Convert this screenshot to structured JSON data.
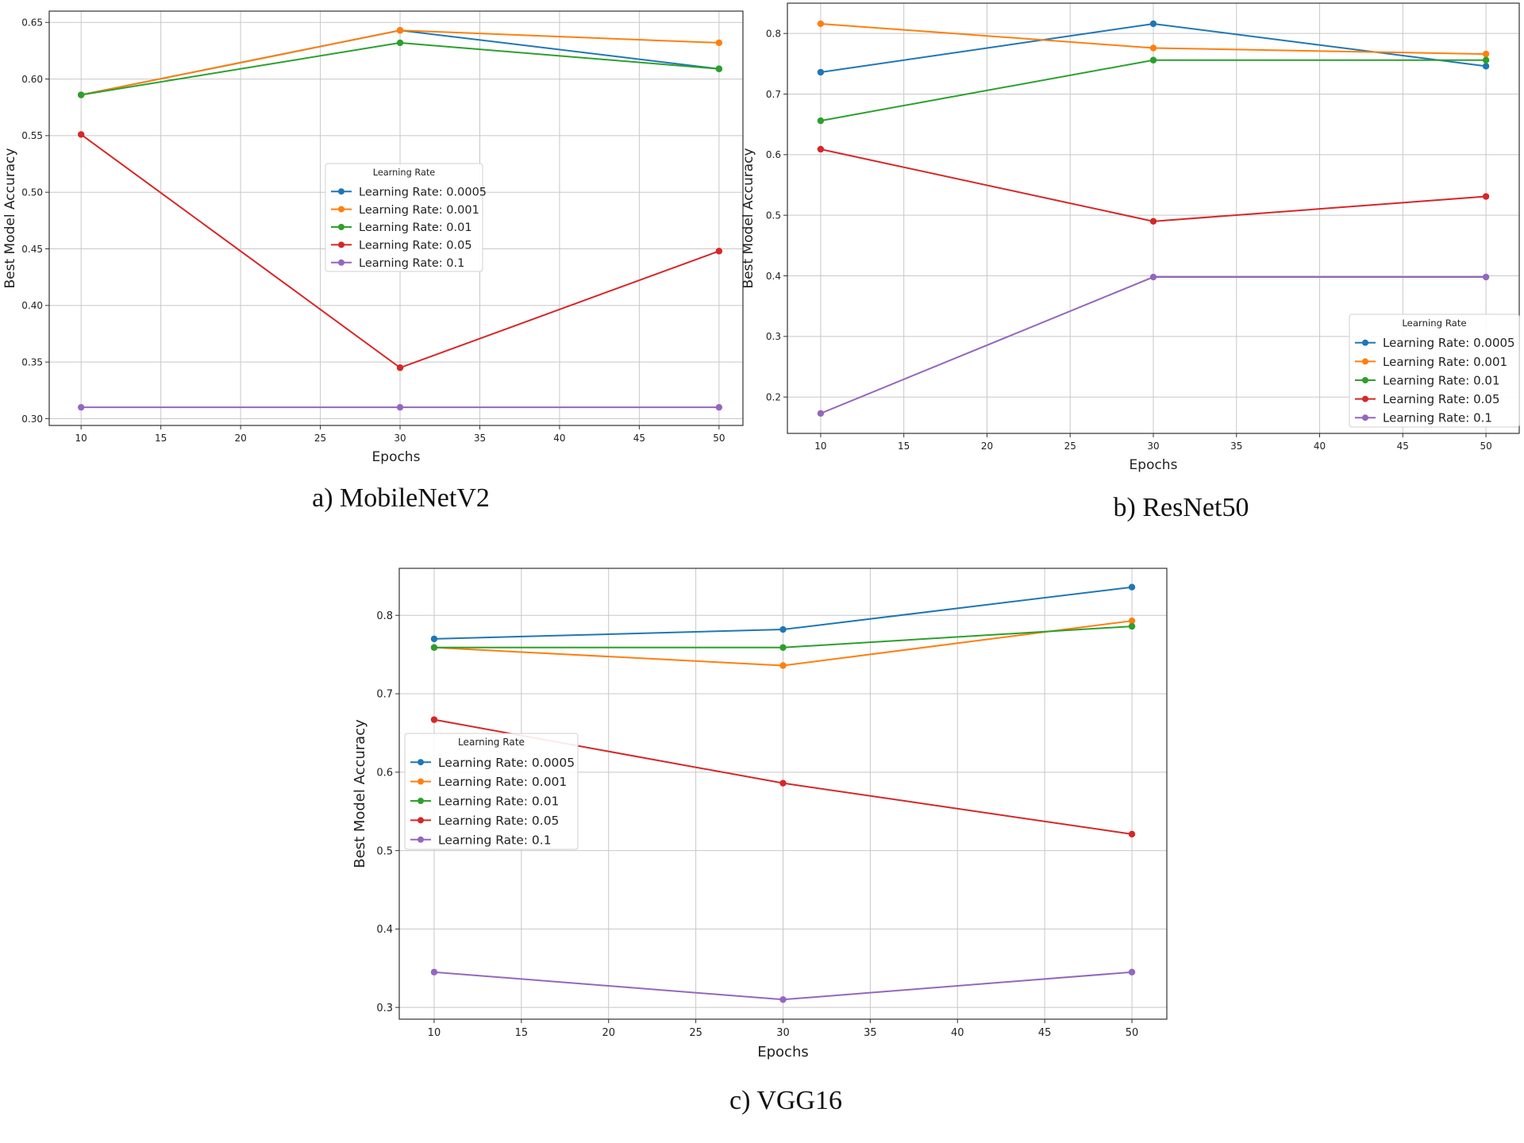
{
  "chart_data": [
    {
      "type": "line",
      "caption": "a)   MobileNetV2",
      "xlabel": "Epochs",
      "ylabel": "Best Model Accuracy",
      "xlim": [
        8,
        51.5
      ],
      "ylim": [
        0.294,
        0.66
      ],
      "x_ticks": [
        10,
        15,
        20,
        25,
        30,
        35,
        40,
        45,
        50
      ],
      "y_ticks": [
        0.3,
        0.35,
        0.4,
        0.45,
        0.5,
        0.55,
        0.6,
        0.65
      ],
      "y_tick_decimals": 2,
      "grid": true,
      "x": [
        10,
        30,
        50
      ],
      "legend": {
        "title": "Learning Rate",
        "placement": "center"
      },
      "series": [
        {
          "name": "Learning Rate: 0.0005",
          "color": "#1f77b4",
          "values": [
            0.586,
            0.643,
            0.609
          ]
        },
        {
          "name": "Learning Rate: 0.001",
          "color": "#ff7f0e",
          "values": [
            0.586,
            0.643,
            0.632
          ]
        },
        {
          "name": "Learning Rate: 0.01",
          "color": "#2ca02c",
          "values": [
            0.586,
            0.632,
            0.609
          ]
        },
        {
          "name": "Learning Rate: 0.05",
          "color": "#d62728",
          "values": [
            0.551,
            0.345,
            0.448
          ]
        },
        {
          "name": "Learning Rate: 0.1",
          "color": "#9467bd",
          "values": [
            0.31,
            0.31,
            0.31
          ]
        }
      ]
    },
    {
      "type": "line",
      "caption": "b) ResNet50",
      "xlabel": "Epochs",
      "ylabel": "Best Model Accuracy",
      "xlim": [
        8,
        52
      ],
      "ylim": [
        0.14,
        0.85
      ],
      "x_ticks": [
        10,
        15,
        20,
        25,
        30,
        35,
        40,
        45,
        50
      ],
      "y_ticks": [
        0.2,
        0.3,
        0.4,
        0.5,
        0.6,
        0.7,
        0.8
      ],
      "y_tick_decimals": 1,
      "grid": true,
      "x": [
        10,
        30,
        50
      ],
      "legend": {
        "title": "Learning Rate",
        "placement": "bottom-right"
      },
      "series": [
        {
          "name": "Learning Rate: 0.0005",
          "color": "#1f77b4",
          "values": [
            0.736,
            0.816,
            0.746
          ]
        },
        {
          "name": "Learning Rate: 0.001",
          "color": "#ff7f0e",
          "values": [
            0.816,
            0.776,
            0.766
          ]
        },
        {
          "name": "Learning Rate: 0.01",
          "color": "#2ca02c",
          "values": [
            0.656,
            0.756,
            0.756
          ]
        },
        {
          "name": "Learning Rate: 0.05",
          "color": "#d62728",
          "values": [
            0.609,
            0.49,
            0.531
          ]
        },
        {
          "name": "Learning Rate: 0.1",
          "color": "#9467bd",
          "values": [
            0.173,
            0.398,
            0.398
          ]
        }
      ]
    },
    {
      "type": "line",
      "caption": "c) VGG16",
      "xlabel": "Epochs",
      "ylabel": "Best Model Accuracy",
      "xlim": [
        8,
        52
      ],
      "ylim": [
        0.285,
        0.86
      ],
      "x_ticks": [
        10,
        15,
        20,
        25,
        30,
        35,
        40,
        45,
        50
      ],
      "y_ticks": [
        0.3,
        0.4,
        0.5,
        0.6,
        0.7,
        0.8
      ],
      "y_tick_decimals": 1,
      "grid": true,
      "x": [
        10,
        30,
        50
      ],
      "legend": {
        "title": "Learning Rate",
        "placement": "center-left"
      },
      "series": [
        {
          "name": "Learning Rate: 0.0005",
          "color": "#1f77b4",
          "values": [
            0.77,
            0.782,
            0.836
          ]
        },
        {
          "name": "Learning Rate: 0.001",
          "color": "#ff7f0e",
          "values": [
            0.759,
            0.736,
            0.793
          ]
        },
        {
          "name": "Learning Rate: 0.01",
          "color": "#2ca02c",
          "values": [
            0.759,
            0.759,
            0.786
          ]
        },
        {
          "name": "Learning Rate: 0.05",
          "color": "#d62728",
          "values": [
            0.667,
            0.586,
            0.521
          ]
        },
        {
          "name": "Learning Rate: 0.1",
          "color": "#9467bd",
          "values": [
            0.345,
            0.31,
            0.345
          ]
        }
      ]
    }
  ]
}
